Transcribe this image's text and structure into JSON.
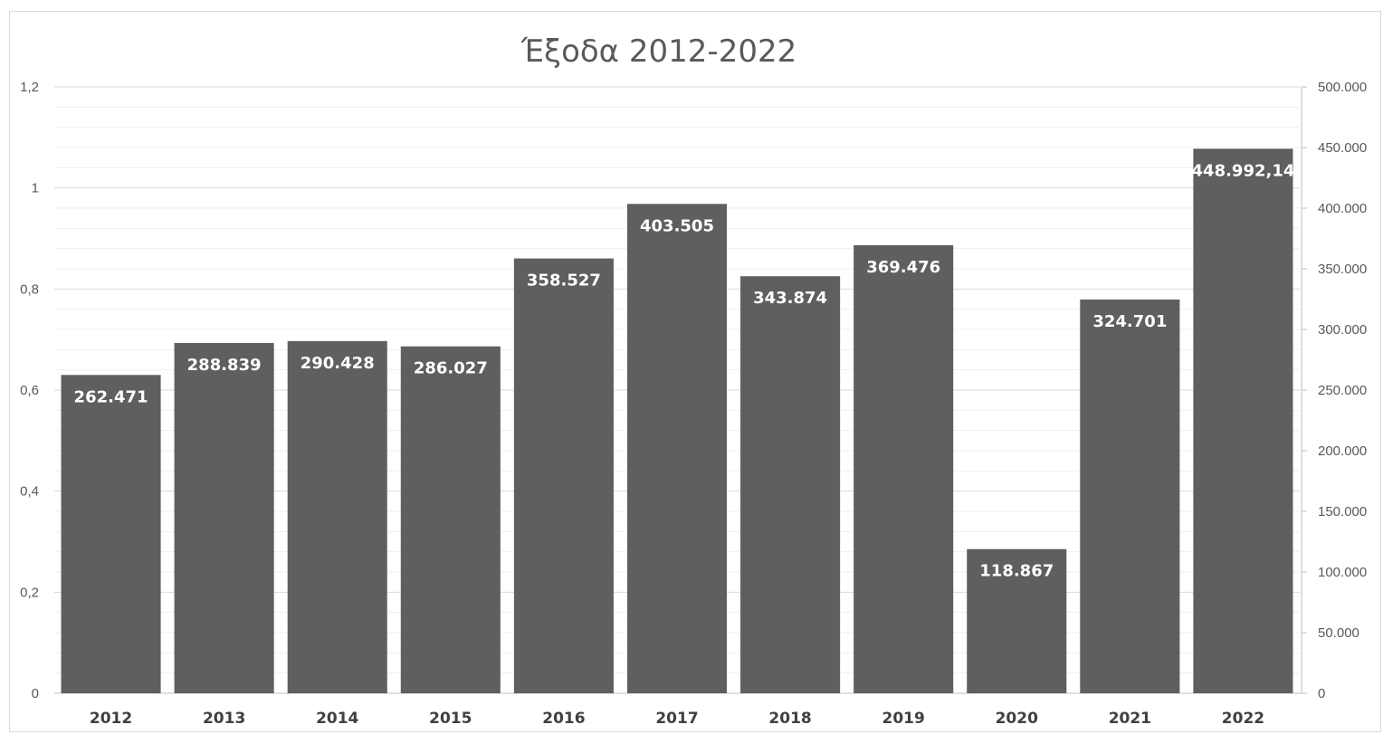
{
  "chart_data": {
    "type": "bar",
    "title": "Έξοδα 2012-2022",
    "categories": [
      "2012",
      "2013",
      "2014",
      "2015",
      "2016",
      "2017",
      "2018",
      "2019",
      "2020",
      "2021",
      "2022"
    ],
    "values": [
      262471,
      288839,
      290428,
      286027,
      358527,
      403505,
      343874,
      369476,
      118867,
      324701,
      448992.14
    ],
    "data_labels": [
      "262.471",
      "288.839",
      "290.428",
      "286.027",
      "358.527",
      "403.505",
      "343.874",
      "369.476",
      "118.867",
      "324.701",
      "448.992,14"
    ],
    "y_left": {
      "ylim": [
        0,
        1.2
      ],
      "ticks": [
        0,
        0.2,
        0.4,
        0.6,
        0.8,
        1,
        1.2
      ],
      "tick_labels": [
        "0",
        "0,2",
        "0,4",
        "0,6",
        "0,8",
        "1",
        "1,2"
      ]
    },
    "y_right": {
      "ylim": [
        0,
        500000
      ],
      "ticks": [
        0,
        50000,
        100000,
        150000,
        200000,
        250000,
        300000,
        350000,
        400000,
        450000,
        500000
      ],
      "tick_labels": [
        "0",
        "50.000",
        "100.000",
        "150.000",
        "200.000",
        "250.000",
        "300.000",
        "350.000",
        "400.000",
        "450.000",
        "500.000"
      ]
    },
    "xlabel": "",
    "ylabel": "",
    "grid": true,
    "legend": "none",
    "bar_color": "#5f5f5f",
    "gridline_color": "#d9d9d9"
  }
}
